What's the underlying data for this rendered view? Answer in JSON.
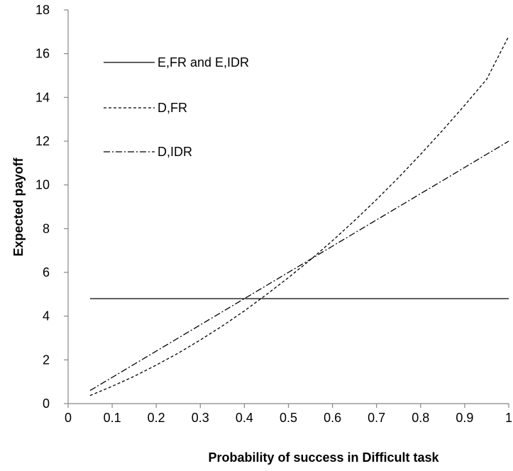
{
  "chart_data": {
    "type": "line",
    "title": "",
    "xlabel": "Probability of success in Difficult task",
    "ylabel": "Expected payoff",
    "xlim": [
      0,
      1
    ],
    "ylim": [
      0,
      18
    ],
    "x_ticks": [
      0,
      0.1,
      0.2,
      0.3,
      0.4,
      0.5,
      0.6,
      0.7,
      0.8,
      0.9,
      1
    ],
    "x_tick_labels": [
      "0",
      "0.1",
      "0.2",
      "0.3",
      "0.4",
      "0.5",
      "0.6",
      "0.7",
      "0.8",
      "0.9",
      "1"
    ],
    "y_ticks": [
      0,
      2,
      4,
      6,
      8,
      10,
      12,
      14,
      16,
      18
    ],
    "y_tick_labels": [
      "0",
      "2",
      "4",
      "6",
      "8",
      "10",
      "12",
      "14",
      "16",
      "18"
    ],
    "grid": false,
    "legend_position": "top-left",
    "x": [
      0.05,
      0.1,
      0.15,
      0.2,
      0.25,
      0.3,
      0.35,
      0.4,
      0.45,
      0.5,
      0.55,
      0.6,
      0.65,
      0.7,
      0.75,
      0.8,
      0.85,
      0.9,
      0.95,
      1.0
    ],
    "series": [
      {
        "name": "E,FR and E,IDR",
        "style": "solid",
        "values": [
          4.8,
          4.8,
          4.8,
          4.8,
          4.8,
          4.8,
          4.8,
          4.8,
          4.8,
          4.8,
          4.8,
          4.8,
          4.8,
          4.8,
          4.8,
          4.8,
          4.8,
          4.8,
          4.8,
          4.8
        ]
      },
      {
        "name": "D,FR",
        "style": "dashed",
        "values": [
          0.37,
          0.79,
          1.25,
          1.76,
          2.31,
          2.91,
          3.55,
          4.24,
          4.98,
          5.76,
          6.58,
          7.45,
          8.37,
          9.33,
          10.34,
          11.4,
          12.5,
          13.64,
          14.83,
          16.8
        ]
      },
      {
        "name": "D,IDR",
        "style": "dash-dot",
        "values": [
          0.6,
          1.2,
          1.8,
          2.4,
          3.0,
          3.6,
          4.2,
          4.8,
          5.4,
          6.0,
          6.6,
          7.2,
          7.8,
          8.4,
          9.0,
          9.6,
          10.2,
          10.8,
          11.4,
          12.0
        ]
      }
    ]
  }
}
